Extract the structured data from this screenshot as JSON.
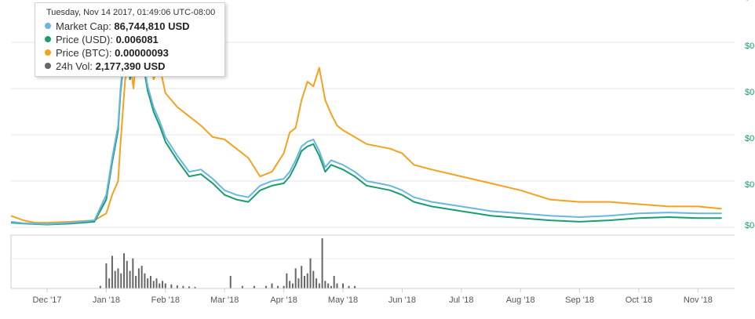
{
  "tooltip": {
    "date": "Tuesday, Nov 14 2017, 01:49:06 UTC-08:00",
    "rows": [
      {
        "label": "Market Cap: ",
        "value": "86,744,810 USD",
        "color": "#68b7e3"
      },
      {
        "label": "Price (USD): ",
        "value": "0.006081",
        "color": "#1b9c71"
      },
      {
        "label": "Price (BTC): ",
        "value": "0.00000093",
        "color": "#f4a21e"
      },
      {
        "label": "24h Vol: ",
        "value": "2,177,390 USD",
        "color": "#666666"
      }
    ]
  },
  "chart_data": {
    "type": "line",
    "x_tick_labels": [
      "Dec '17",
      "Jan '18",
      "Feb '18",
      "Mar '18",
      "Apr '18",
      "May '18",
      "Jun '18",
      "Jul '18",
      "Aug '18",
      "Sep '18",
      "Oct '18",
      "Nov '18"
    ],
    "y_tick_labels": [
      "$0",
      "$0",
      "$0",
      "$0",
      "$0",
      "$0"
    ],
    "colors": {
      "market_cap": "#68b7e3",
      "price_usd": "#1b9c71",
      "price_btc": "#f4a21e",
      "volume": "#666666"
    },
    "grid": true,
    "series": [
      {
        "name": "Price (BTC)",
        "x": [
          -0.7,
          -0.4,
          -0.2,
          0.0,
          0.4,
          0.8,
          1.0,
          1.1,
          1.2,
          1.24,
          1.28,
          1.32,
          1.36,
          1.4,
          1.46,
          1.52,
          1.6,
          1.7,
          1.8,
          1.9,
          2.0,
          2.2,
          2.4,
          2.6,
          2.8,
          3.0,
          3.2,
          3.4,
          3.6,
          3.8,
          4.0,
          4.1,
          4.2,
          4.3,
          4.4,
          4.5,
          4.6,
          4.7,
          4.8,
          4.9,
          5.0,
          5.2,
          5.4,
          5.6,
          5.8,
          6.0,
          6.2,
          6.5,
          7.0,
          7.5,
          8.0,
          8.5,
          9.0,
          9.5,
          10.0,
          10.5,
          11.0,
          11.4
        ],
        "values": [
          0.25,
          0.15,
          0.1,
          0.1,
          0.12,
          0.15,
          0.3,
          0.7,
          1.0,
          1.8,
          2.5,
          3.2,
          3.4,
          3.6,
          3.0,
          3.9,
          4.8,
          3.9,
          3.2,
          3.5,
          2.9,
          2.6,
          2.4,
          2.2,
          1.95,
          1.9,
          1.7,
          1.5,
          1.1,
          1.2,
          1.6,
          2.05,
          2.15,
          2.75,
          3.15,
          3.05,
          3.45,
          2.75,
          2.45,
          2.2,
          2.1,
          1.95,
          1.8,
          1.75,
          1.7,
          1.6,
          1.35,
          1.25,
          1.1,
          0.95,
          0.8,
          0.6,
          0.55,
          0.55,
          0.5,
          0.45,
          0.45,
          0.4
        ]
      },
      {
        "name": "Price (USD)",
        "x": [
          -0.7,
          -0.4,
          -0.2,
          0.0,
          0.4,
          0.8,
          1.0,
          1.1,
          1.2,
          1.24,
          1.28,
          1.32,
          1.36,
          1.4,
          1.46,
          1.52,
          1.6,
          1.7,
          1.8,
          1.9,
          2.0,
          2.2,
          2.4,
          2.6,
          2.8,
          3.0,
          3.2,
          3.4,
          3.6,
          3.8,
          4.0,
          4.1,
          4.2,
          4.3,
          4.4,
          4.5,
          4.6,
          4.7,
          4.8,
          4.9,
          5.0,
          5.2,
          5.4,
          5.6,
          5.8,
          6.0,
          6.2,
          6.5,
          7.0,
          7.5,
          8.0,
          8.5,
          9.0,
          9.5,
          10.0,
          10.5,
          11.0,
          11.4
        ],
        "values": [
          0.1,
          0.08,
          0.07,
          0.06,
          0.08,
          0.12,
          0.6,
          1.4,
          2.1,
          2.9,
          3.4,
          3.9,
          4.0,
          3.2,
          3.6,
          4.0,
          3.7,
          2.95,
          2.5,
          2.2,
          1.85,
          1.45,
          1.1,
          1.15,
          0.95,
          0.7,
          0.6,
          0.55,
          0.8,
          0.9,
          0.95,
          1.1,
          1.35,
          1.65,
          1.75,
          1.8,
          1.55,
          1.2,
          1.35,
          1.3,
          1.25,
          1.1,
          0.9,
          0.85,
          0.8,
          0.7,
          0.55,
          0.45,
          0.35,
          0.25,
          0.2,
          0.15,
          0.12,
          0.15,
          0.2,
          0.22,
          0.2,
          0.2
        ]
      },
      {
        "name": "Market Cap",
        "x": [
          -0.7,
          -0.4,
          -0.2,
          0.0,
          0.4,
          0.8,
          1.0,
          1.1,
          1.2,
          1.24,
          1.28,
          1.32,
          1.36,
          1.4,
          1.46,
          1.52,
          1.6,
          1.7,
          1.8,
          1.9,
          2.0,
          2.2,
          2.4,
          2.6,
          2.8,
          3.0,
          3.2,
          3.4,
          3.6,
          3.8,
          4.0,
          4.1,
          4.2,
          4.3,
          4.4,
          4.5,
          4.6,
          4.7,
          4.8,
          4.9,
          5.0,
          5.2,
          5.4,
          5.6,
          5.8,
          6.0,
          6.2,
          6.5,
          7.0,
          7.5,
          8.0,
          8.5,
          9.0,
          9.5,
          10.0,
          10.5,
          11.0,
          11.4
        ],
        "values": [
          0.12,
          0.09,
          0.08,
          0.07,
          0.1,
          0.15,
          0.7,
          1.5,
          2.2,
          3.0,
          3.5,
          4.0,
          4.1,
          3.3,
          3.7,
          4.1,
          3.8,
          3.05,
          2.6,
          2.3,
          1.95,
          1.55,
          1.2,
          1.25,
          1.05,
          0.8,
          0.7,
          0.65,
          0.9,
          1.0,
          1.05,
          1.2,
          1.45,
          1.75,
          1.85,
          1.9,
          1.65,
          1.3,
          1.45,
          1.4,
          1.35,
          1.2,
          1.0,
          0.95,
          0.9,
          0.8,
          0.65,
          0.55,
          0.45,
          0.35,
          0.3,
          0.25,
          0.22,
          0.25,
          0.3,
          0.32,
          0.3,
          0.3
        ]
      }
    ],
    "volume": {
      "name": "24h Vol",
      "x": [
        0.9,
        1.0,
        1.05,
        1.1,
        1.15,
        1.2,
        1.25,
        1.3,
        1.35,
        1.4,
        1.45,
        1.5,
        1.55,
        1.6,
        1.65,
        1.7,
        1.75,
        1.8,
        1.85,
        1.9,
        1.95,
        2.0,
        2.1,
        2.2,
        2.3,
        2.4,
        2.5,
        3.1,
        3.3,
        3.5,
        3.7,
        3.8,
        3.9,
        4.0,
        4.05,
        4.1,
        4.15,
        4.2,
        4.25,
        4.3,
        4.35,
        4.4,
        4.45,
        4.5,
        4.55,
        4.6,
        4.65,
        4.7,
        4.75,
        4.8,
        4.85,
        4.9,
        5.0,
        5.1,
        5.2
      ],
      "values": [
        0.05,
        0.5,
        0.2,
        0.65,
        0.35,
        0.4,
        0.3,
        0.7,
        0.55,
        0.35,
        0.6,
        0.25,
        0.4,
        0.45,
        0.3,
        0.2,
        0.25,
        0.15,
        0.2,
        0.1,
        0.15,
        0.1,
        0.08,
        0.06,
        0.05,
        0.04,
        0.03,
        0.25,
        0.05,
        0.05,
        0.05,
        0.1,
        0.05,
        0.05,
        0.3,
        0.15,
        0.1,
        0.4,
        0.2,
        0.45,
        0.25,
        0.3,
        0.6,
        0.35,
        0.2,
        0.1,
        1.0,
        0.15,
        0.1,
        0.05,
        0.25,
        0.1,
        0.1,
        0.05,
        0.05
      ]
    }
  }
}
